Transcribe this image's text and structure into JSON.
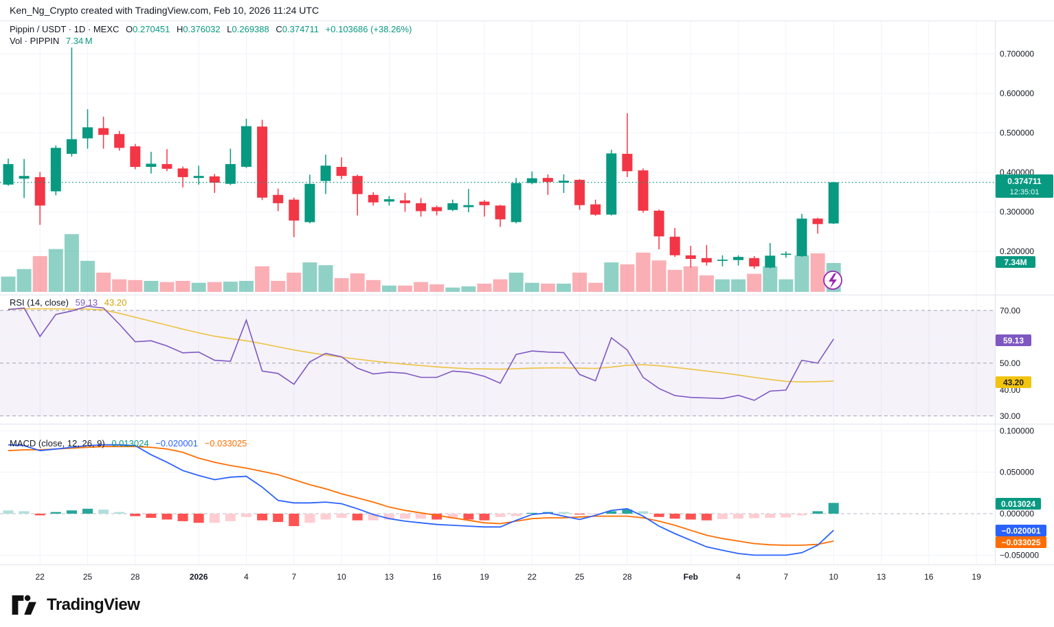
{
  "header": {
    "credit": "Ken_Ng_Crypto created with TradingView.com, Feb 10, 2026 11:24 UTC"
  },
  "main_pane": {
    "legend": {
      "symbol": "Pippin / USDT · 1D · MEXC",
      "o_label": "O",
      "o": "0.270451",
      "h_label": "H",
      "h": "0.376032",
      "l_label": "L",
      "l": "0.269388",
      "c_label": "C",
      "c": "0.374711",
      "change": "+0.103686 (+38.26%)"
    },
    "vol_legend": {
      "label": "Vol · PIPPIN",
      "value": "7.34 M"
    },
    "price_axis": [
      "0.700000",
      "0.600000",
      "0.500000",
      "0.400000",
      "0.300000",
      "0.200000"
    ],
    "price_badge": {
      "price": "0.374711",
      "countdown": "12:35:01"
    },
    "vol_badge": "7.34M"
  },
  "rsi_pane": {
    "label": "RSI (14, close)",
    "value": "59.13",
    "ma_value": "43.20",
    "axis": [
      "70.00",
      "50.00",
      "40.00",
      "30.00"
    ],
    "badges": {
      "rsi": "59.13",
      "ma": "43.20"
    }
  },
  "macd_pane": {
    "label": "MACD (close, 12, 26, 9)",
    "hist_value": "0.013024",
    "macd_value": "−0.020001",
    "signal_value": "−0.033025",
    "axis": [
      "0.100000",
      "0.050000",
      "0.000000",
      "−0.050000"
    ],
    "badges": {
      "hist": "0.013024",
      "macd": "−0.020001",
      "signal": "−0.033025"
    }
  },
  "time_axis": {
    "labels": [
      {
        "text": "22",
        "day": 2
      },
      {
        "text": "25",
        "day": 5
      },
      {
        "text": "28",
        "day": 8
      },
      {
        "text": "2026",
        "day": 12,
        "bold": true
      },
      {
        "text": "4",
        "day": 15
      },
      {
        "text": "7",
        "day": 18
      },
      {
        "text": "10",
        "day": 21
      },
      {
        "text": "13",
        "day": 24
      },
      {
        "text": "16",
        "day": 27
      },
      {
        "text": "19",
        "day": 30
      },
      {
        "text": "22",
        "day": 33
      },
      {
        "text": "25",
        "day": 36
      },
      {
        "text": "28",
        "day": 39
      },
      {
        "text": "Feb",
        "day": 43,
        "bold": true
      },
      {
        "text": "4",
        "day": 46
      },
      {
        "text": "7",
        "day": 49
      },
      {
        "text": "10",
        "day": 52
      },
      {
        "text": "13",
        "day": 55
      },
      {
        "text": "16",
        "day": 58
      },
      {
        "text": "19",
        "day": 61
      }
    ]
  },
  "footer": {
    "brand": "TradingView"
  },
  "icons": {
    "lightning_marker": "lightning-bolt"
  },
  "colors": {
    "up": "#089981",
    "down": "#f23645",
    "vol_up": "rgba(8,153,129,0.45)",
    "vol_down": "rgba(242,54,69,0.40)",
    "rsi_line": "#7e57c2",
    "rsi_ma": "#edc240",
    "macd_line": "#2962ff",
    "signal_line": "#ff6d00",
    "hist_grow_above": "#26a69a",
    "hist_fall_above": "#b2dfdb",
    "hist_grow_below": "#ffcdd2",
    "hist_fall_below": "#ff5252",
    "badge_price": "#089981",
    "badge_rsi": "#7e57c2",
    "badge_rsi_ma": "#f2c40f",
    "badge_macd": "#2962ff",
    "badge_signal": "#ff6d00",
    "grid": "#f0f3fa",
    "dashed": "#a0a3ae",
    "separator": "#e0e3eb"
  },
  "chart_data": [
    {
      "type": "candlestick",
      "title": "Pippin / USDT · 1D · MEXC",
      "last_price": 0.374711,
      "ylim": [
        0.13,
        0.76
      ],
      "y_gridlines": [
        0.2,
        0.3,
        0.4,
        0.5,
        0.6,
        0.7
      ],
      "dates": [
        "Dec 20",
        "Dec 21",
        "Dec 22",
        "Dec 23",
        "Dec 24",
        "Dec 25",
        "Dec 26",
        "Dec 27",
        "Dec 28",
        "Dec 29",
        "Dec 30",
        "Dec 31",
        "Jan 1",
        "Jan 2",
        "Jan 3",
        "Jan 4",
        "Jan 5",
        "Jan 6",
        "Jan 7",
        "Jan 8",
        "Jan 9",
        "Jan 10",
        "Jan 11",
        "Jan 12",
        "Jan 13",
        "Jan 14",
        "Jan 15",
        "Jan 16",
        "Jan 17",
        "Jan 18",
        "Jan 19",
        "Jan 20",
        "Jan 21",
        "Jan 22",
        "Jan 23",
        "Jan 24",
        "Jan 25",
        "Jan 26",
        "Jan 27",
        "Jan 28",
        "Jan 29",
        "Jan 30",
        "Jan 31",
        "Feb 1",
        "Feb 2",
        "Feb 3",
        "Feb 4",
        "Feb 5",
        "Feb 6",
        "Feb 7",
        "Feb 8",
        "Feb 9",
        "Feb 10"
      ],
      "ohlc": [
        [
          0.369,
          0.435,
          0.366,
          0.421
        ],
        [
          0.384,
          0.434,
          0.335,
          0.391
        ],
        [
          0.388,
          0.401,
          0.267,
          0.316
        ],
        [
          0.352,
          0.468,
          0.342,
          0.462
        ],
        [
          0.447,
          0.716,
          0.44,
          0.484
        ],
        [
          0.486,
          0.56,
          0.46,
          0.514
        ],
        [
          0.512,
          0.541,
          0.46,
          0.495
        ],
        [
          0.497,
          0.505,
          0.455,
          0.462
        ],
        [
          0.466,
          0.472,
          0.408,
          0.414
        ],
        [
          0.414,
          0.452,
          0.397,
          0.422
        ],
        [
          0.421,
          0.459,
          0.403,
          0.409
        ],
        [
          0.41,
          0.415,
          0.362,
          0.388
        ],
        [
          0.386,
          0.417,
          0.369,
          0.391
        ],
        [
          0.39,
          0.396,
          0.348,
          0.374
        ],
        [
          0.371,
          0.46,
          0.368,
          0.421
        ],
        [
          0.414,
          0.536,
          0.411,
          0.517
        ],
        [
          0.516,
          0.533,
          0.33,
          0.336
        ],
        [
          0.343,
          0.359,
          0.302,
          0.322
        ],
        [
          0.331,
          0.336,
          0.236,
          0.278
        ],
        [
          0.274,
          0.394,
          0.271,
          0.371
        ],
        [
          0.378,
          0.445,
          0.345,
          0.417
        ],
        [
          0.414,
          0.438,
          0.383,
          0.391
        ],
        [
          0.391,
          0.394,
          0.291,
          0.345
        ],
        [
          0.343,
          0.35,
          0.316,
          0.324
        ],
        [
          0.326,
          0.34,
          0.316,
          0.332
        ],
        [
          0.329,
          0.348,
          0.3,
          0.322
        ],
        [
          0.322,
          0.335,
          0.288,
          0.302
        ],
        [
          0.312,
          0.316,
          0.291,
          0.302
        ],
        [
          0.305,
          0.331,
          0.302,
          0.322
        ],
        [
          0.312,
          0.358,
          0.299,
          0.317
        ],
        [
          0.326,
          0.33,
          0.288,
          0.317
        ],
        [
          0.316,
          0.318,
          0.262,
          0.281
        ],
        [
          0.274,
          0.386,
          0.271,
          0.373
        ],
        [
          0.373,
          0.402,
          0.37,
          0.385
        ],
        [
          0.386,
          0.395,
          0.343,
          0.376
        ],
        [
          0.374,
          0.395,
          0.348,
          0.379
        ],
        [
          0.381,
          0.383,
          0.305,
          0.317
        ],
        [
          0.319,
          0.331,
          0.29,
          0.293
        ],
        [
          0.293,
          0.457,
          0.291,
          0.448
        ],
        [
          0.447,
          0.55,
          0.388,
          0.403
        ],
        [
          0.405,
          0.41,
          0.298,
          0.303
        ],
        [
          0.303,
          0.306,
          0.205,
          0.238
        ],
        [
          0.237,
          0.259,
          0.186,
          0.19
        ],
        [
          0.19,
          0.214,
          0.159,
          0.181
        ],
        [
          0.183,
          0.216,
          0.164,
          0.172
        ],
        [
          0.176,
          0.19,
          0.162,
          0.179
        ],
        [
          0.178,
          0.19,
          0.164,
          0.186
        ],
        [
          0.183,
          0.188,
          0.156,
          0.162
        ],
        [
          0.159,
          0.221,
          0.157,
          0.189
        ],
        [
          0.191,
          0.2,
          0.184,
          0.194
        ],
        [
          0.188,
          0.295,
          0.186,
          0.283
        ],
        [
          0.283,
          0.285,
          0.245,
          0.269
        ],
        [
          0.270451,
          0.376032,
          0.269388,
          0.374711
        ]
      ],
      "volume_m": [
        3.9,
        5.8,
        9.1,
        10.9,
        14.7,
        7.9,
        4.9,
        3.2,
        3.0,
        2.8,
        2.5,
        2.8,
        2.3,
        2.5,
        2.6,
        2.8,
        6.5,
        2.8,
        4.9,
        7.5,
        6.8,
        3.5,
        4.7,
        3.0,
        1.6,
        1.6,
        2.5,
        1.9,
        1.1,
        1.4,
        2.1,
        3.2,
        4.9,
        2.3,
        2.1,
        2.1,
        4.9,
        2.3,
        7.5,
        7.0,
        10.0,
        8.0,
        5.6,
        6.5,
        4.2,
        3.2,
        3.2,
        4.6,
        6.5,
        3.2,
        9.3,
        9.8,
        7.34
      ],
      "last_volume_label": "7.34M"
    },
    {
      "type": "line",
      "title": "RSI (14, close)",
      "ylim": [
        25,
        75
      ],
      "levels": [
        70,
        50,
        30
      ],
      "band": [
        30,
        70
      ],
      "series": [
        {
          "name": "RSI",
          "color": "#7e57c2",
          "values": [
            70.3,
            70.9,
            60.1,
            68.5,
            69.8,
            71.6,
            70.9,
            64.8,
            58.1,
            58.5,
            56.5,
            53.9,
            54.2,
            51.1,
            50.7,
            66.3,
            47.0,
            46.1,
            42.0,
            50.5,
            53.7,
            52.4,
            48.1,
            45.9,
            46.6,
            46.2,
            44.6,
            44.6,
            47.0,
            46.5,
            45.0,
            42.4,
            53.3,
            54.6,
            54.2,
            54.0,
            45.7,
            43.3,
            59.6,
            55.0,
            44.6,
            40.4,
            37.7,
            37.0,
            36.8,
            36.6,
            37.8,
            35.9,
            39.4,
            39.8,
            51.1,
            50.0,
            59.13
          ]
        },
        {
          "name": "RSI-based MA",
          "color": "#edc240",
          "values": [
            70.5,
            70.6,
            70.6,
            70.6,
            70.5,
            70.5,
            70.2,
            68.9,
            67.4,
            65.9,
            64.4,
            62.9,
            61.5,
            60.2,
            59.3,
            58.5,
            57.4,
            56.2,
            55.0,
            54.0,
            53.1,
            52.3,
            51.5,
            50.8,
            50.2,
            49.6,
            49.1,
            48.6,
            48.2,
            47.9,
            47.8,
            47.7,
            47.9,
            48.1,
            48.2,
            48.2,
            48.1,
            48.0,
            48.5,
            49.2,
            49.4,
            49.0,
            48.4,
            47.7,
            47.0,
            46.3,
            45.5,
            44.6,
            43.8,
            43.1,
            42.9,
            43.0,
            43.2
          ]
        }
      ]
    },
    {
      "type": "macd",
      "title": "MACD (close, 12, 26, 9)",
      "ylim": [
        -0.065,
        0.105
      ],
      "y_gridlines": [
        0.1,
        0.05,
        0.0,
        -0.05
      ],
      "series": [
        {
          "name": "Histogram",
          "values": [
            0.004,
            0.003,
            -0.002,
            0.002,
            0.004,
            0.006,
            0.005,
            0.002,
            -0.003,
            -0.005,
            -0.007,
            -0.009,
            -0.011,
            -0.011,
            -0.009,
            -0.004,
            -0.008,
            -0.01,
            -0.015,
            -0.011,
            -0.007,
            -0.005,
            -0.008,
            -0.008,
            -0.007,
            -0.006,
            -0.006,
            -0.007,
            -0.006,
            -0.007,
            -0.008,
            -0.004,
            -0.003,
            0.001,
            0.002,
            0.002,
            -0.001,
            -0.001,
            0.003,
            0.005,
            0.003,
            -0.004,
            -0.006,
            -0.007,
            -0.008,
            -0.0065,
            -0.006,
            -0.0055,
            -0.005,
            -0.0045,
            -0.002,
            0.003,
            0.013024
          ]
        },
        {
          "name": "MACD",
          "color": "#2962ff",
          "values": [
            0.083,
            0.082,
            0.076,
            0.078,
            0.08,
            0.082,
            0.083,
            0.083,
            0.082,
            0.071,
            0.062,
            0.052,
            0.046,
            0.041,
            0.044,
            0.045,
            0.032,
            0.016,
            0.013,
            0.013,
            0.014,
            0.012,
            0.006,
            -0.001,
            -0.006,
            -0.009,
            -0.011,
            -0.013,
            -0.014,
            -0.015,
            -0.016,
            -0.016,
            -0.008,
            -0.001,
            0.001,
            -0.003,
            -0.007,
            -0.002,
            0.004,
            0.006,
            -0.003,
            -0.015,
            -0.024,
            -0.032,
            -0.04,
            -0.044,
            -0.048,
            -0.05,
            -0.05,
            -0.05,
            -0.047,
            -0.038,
            -0.020001
          ]
        },
        {
          "name": "Signal",
          "color": "#ff6d00",
          "values": [
            0.076,
            0.077,
            0.077,
            0.078,
            0.079,
            0.08,
            0.081,
            0.081,
            0.081,
            0.08,
            0.078,
            0.074,
            0.067,
            0.062,
            0.058,
            0.055,
            0.051,
            0.047,
            0.041,
            0.035,
            0.03,
            0.024,
            0.019,
            0.014,
            0.008,
            0.004,
            0.001,
            -0.002,
            -0.005,
            -0.008,
            -0.011,
            -0.012,
            -0.009,
            -0.006,
            -0.005,
            -0.005,
            -0.004,
            -0.003,
            -0.003,
            -0.003,
            -0.005,
            -0.009,
            -0.014,
            -0.02,
            -0.026,
            -0.03,
            -0.033,
            -0.036,
            -0.0375,
            -0.038,
            -0.038,
            -0.037,
            -0.033025
          ]
        }
      ]
    }
  ]
}
